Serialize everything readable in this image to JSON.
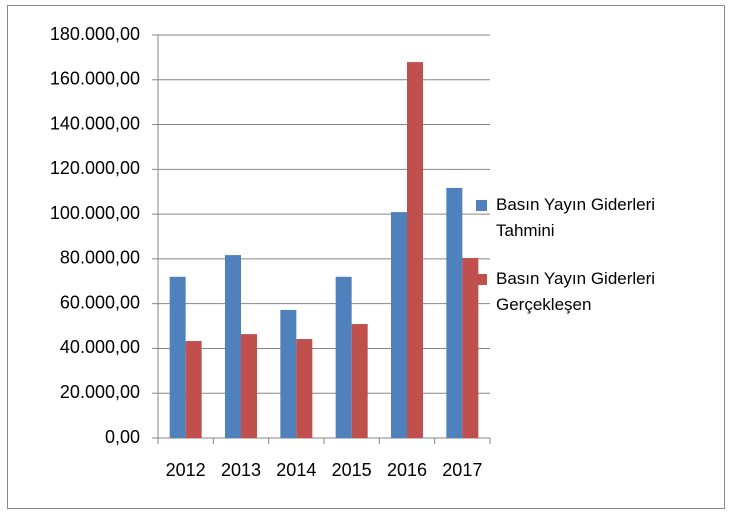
{
  "chart_data": {
    "type": "bar",
    "categories": [
      "2012",
      "2013",
      "2014",
      "2015",
      "2016",
      "2017"
    ],
    "series": [
      {
        "name": "Basın Yayın Giderleri Tahmini",
        "color": "#4f81bd",
        "values": [
          72000,
          81700,
          57200,
          72000,
          100900,
          111700
        ]
      },
      {
        "name": "Basın Yayın Giderleri Gerçekleşen",
        "color": "#c0504d",
        "values": [
          43300,
          46400,
          44200,
          50900,
          167900,
          80400
        ]
      }
    ],
    "ylim": [
      0,
      180000
    ],
    "yticks": [
      {
        "value": 0,
        "label": "0,00"
      },
      {
        "value": 20000,
        "label": "20.000,00"
      },
      {
        "value": 40000,
        "label": "40.000,00"
      },
      {
        "value": 60000,
        "label": "60.000,00"
      },
      {
        "value": 80000,
        "label": "80.000,00"
      },
      {
        "value": 100000,
        "label": "100.000,00"
      },
      {
        "value": 120000,
        "label": "120.000,00"
      },
      {
        "value": 140000,
        "label": "140.000,00"
      },
      {
        "value": 160000,
        "label": "160.000,00"
      },
      {
        "value": 180000,
        "label": "180.000,00"
      }
    ],
    "grid": true,
    "legend": "right"
  }
}
